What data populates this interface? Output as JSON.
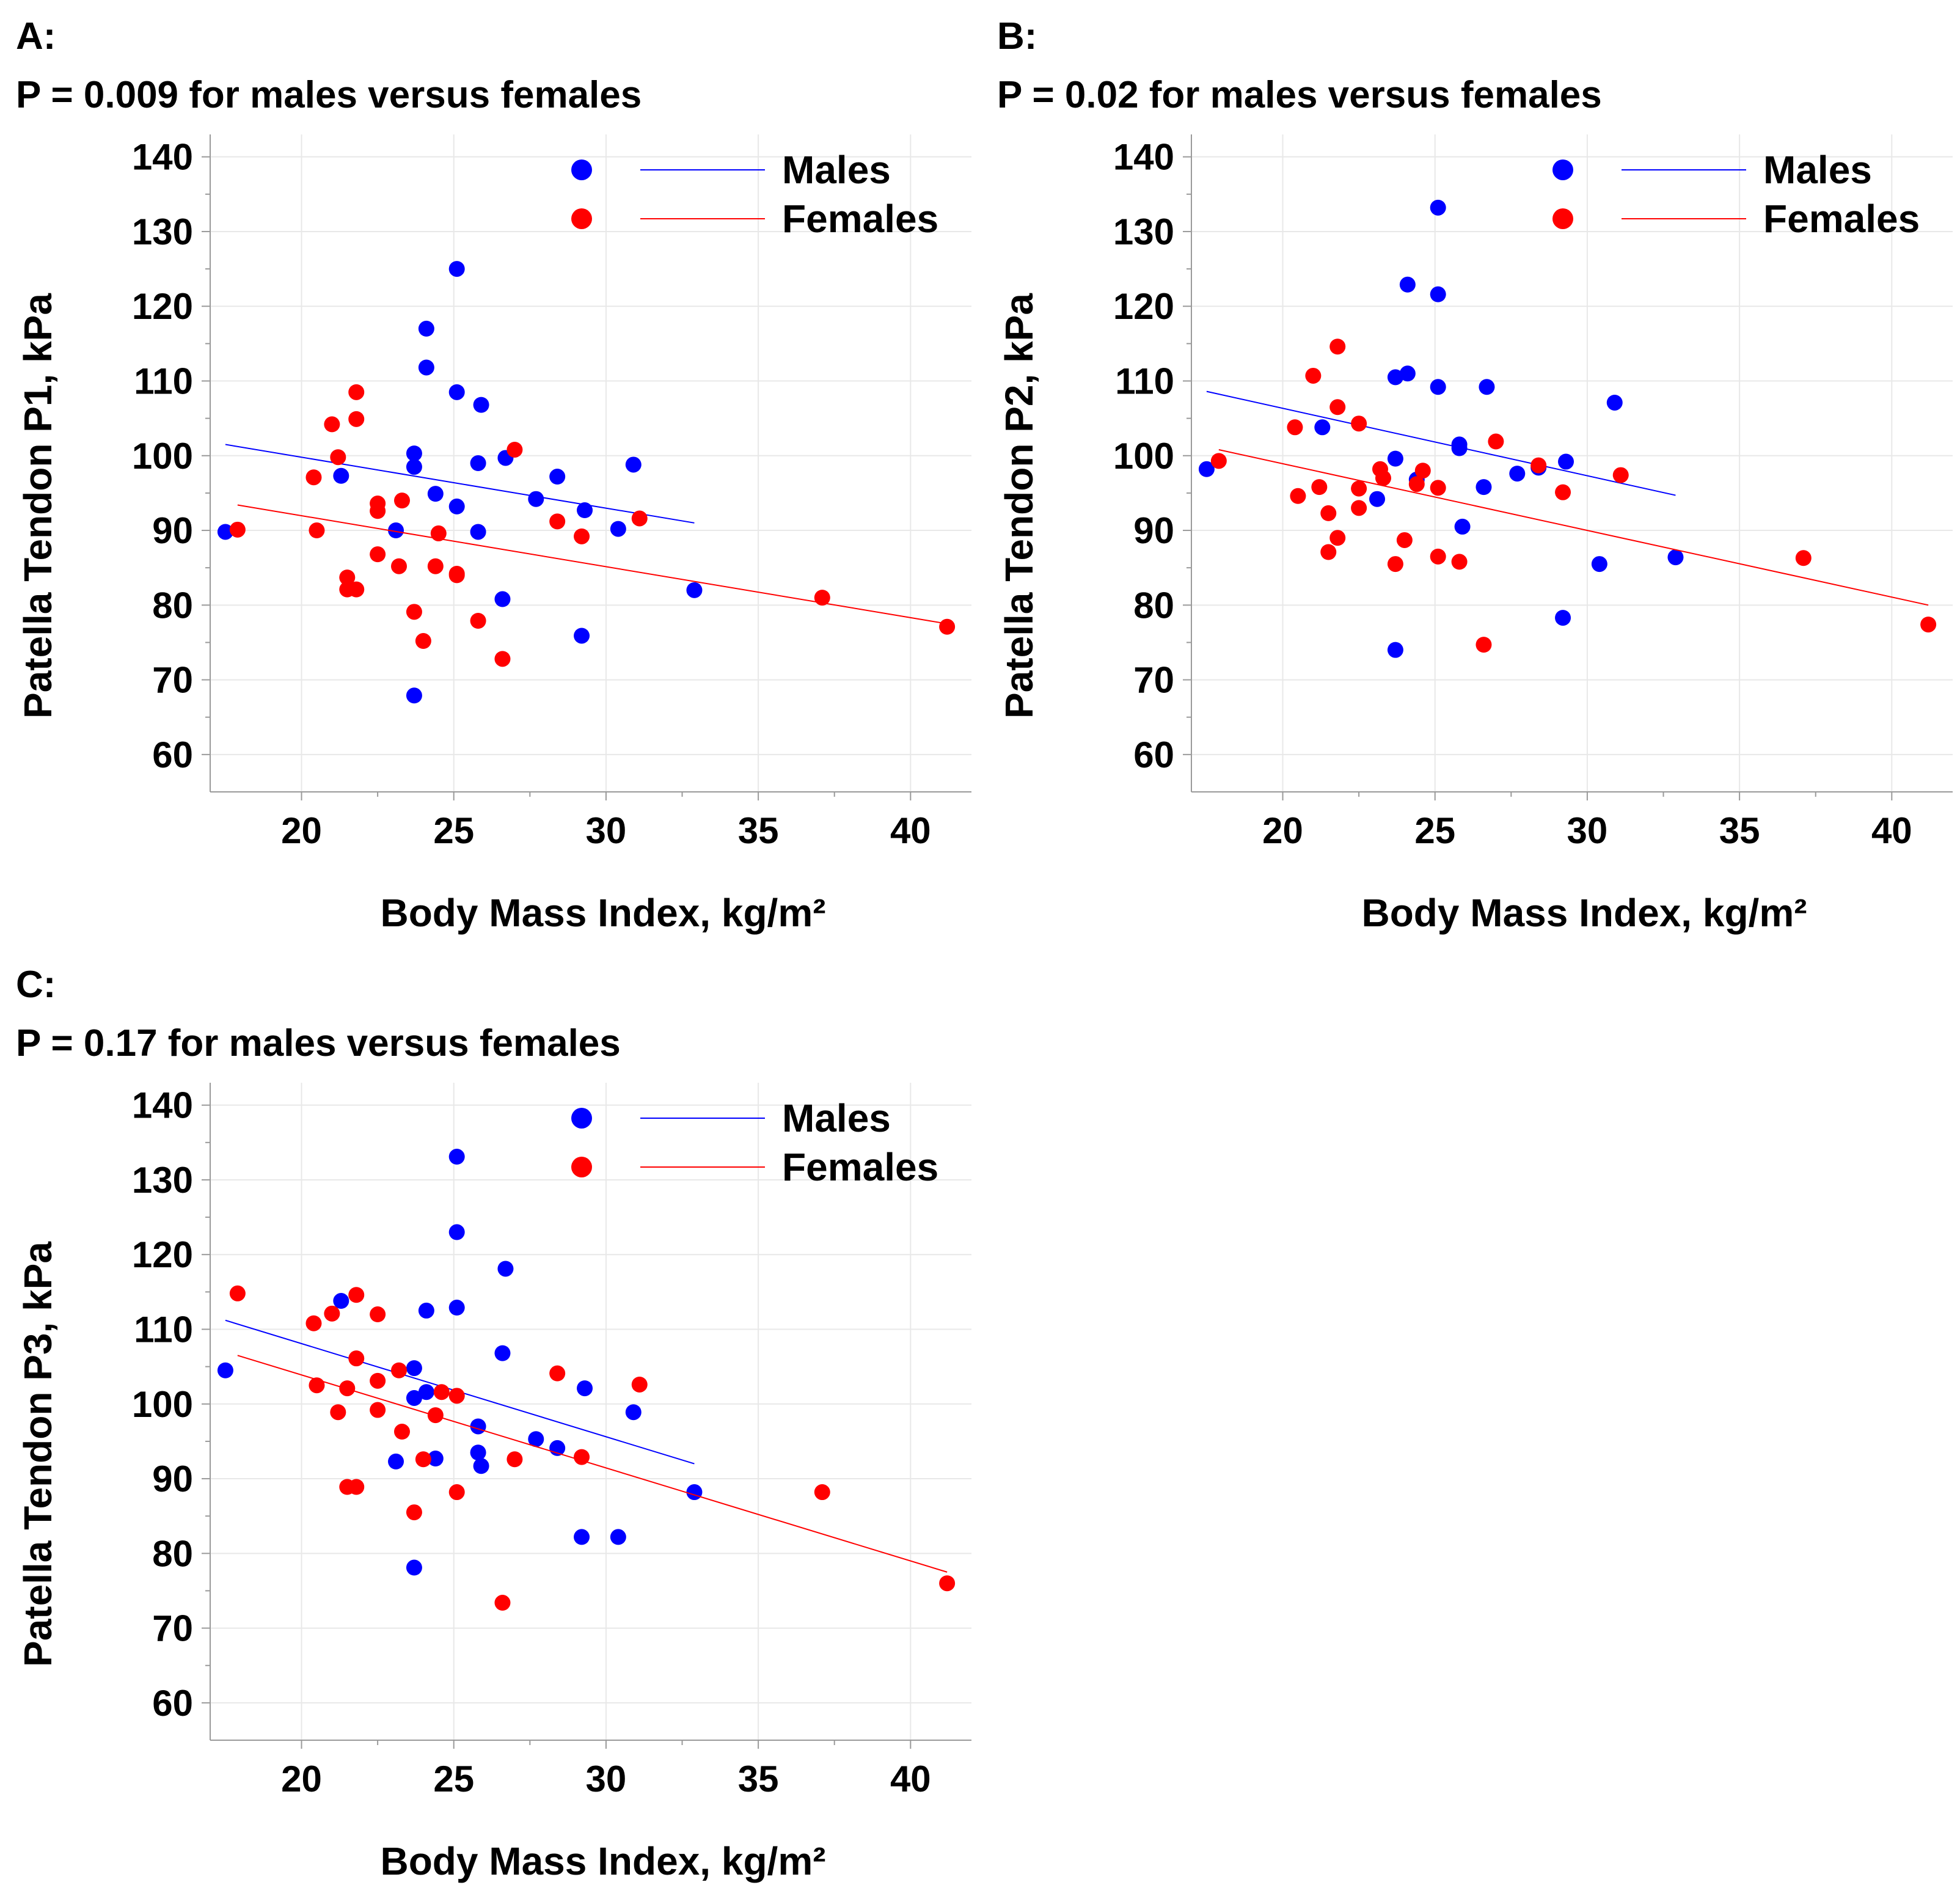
{
  "chart_data": [
    {
      "type": "scatter",
      "panel_label": "A:",
      "title": "P = 0.009 for males versus females",
      "xlabel": "Body Mass Index, kg/m²",
      "ylabel": "Patella Tendon P1, kPa",
      "xlim": [
        17,
        42
      ],
      "ylim": [
        55,
        143
      ],
      "xticks": [
        20,
        25,
        30,
        35,
        40
      ],
      "yticks": [
        60,
        70,
        80,
        90,
        100,
        110,
        120,
        130,
        140
      ],
      "grid": true,
      "legend_position": "top-right",
      "series": [
        {
          "name": "Males",
          "color": "#0000ff",
          "points": [
            [
              17.5,
              89.8
            ],
            [
              21.3,
              97.3
            ],
            [
              23.1,
              90
            ],
            [
              23.7,
              100.3
            ],
            [
              23.7,
              98.5
            ],
            [
              23.7,
              67.9
            ],
            [
              24.1,
              117
            ],
            [
              24.1,
              111.8
            ],
            [
              24.4,
              94.9
            ],
            [
              25.1,
              125
            ],
            [
              25.1,
              108.5
            ],
            [
              25.1,
              93.2
            ],
            [
              25.8,
              99
            ],
            [
              25.8,
              89.8
            ],
            [
              25.9,
              106.8
            ],
            [
              26.6,
              80.8
            ],
            [
              26.7,
              99.7
            ],
            [
              27.7,
              94.2
            ],
            [
              28.4,
              97.2
            ],
            [
              29.2,
              75.9
            ],
            [
              29.3,
              92.7
            ],
            [
              30.4,
              90.2
            ],
            [
              30.9,
              98.8
            ],
            [
              32.9,
              82
            ]
          ],
          "fit": [
            [
              17.5,
              101.5
            ],
            [
              32.9,
              91
            ]
          ]
        },
        {
          "name": "Females",
          "color": "#ff0000",
          "points": [
            [
              17.9,
              90.1
            ],
            [
              20.4,
              97.1
            ],
            [
              20.5,
              90
            ],
            [
              21,
              104.2
            ],
            [
              21.2,
              99.8
            ],
            [
              21.5,
              83.7
            ],
            [
              21.5,
              82.1
            ],
            [
              21.8,
              82.1
            ],
            [
              21.8,
              108.5
            ],
            [
              21.8,
              104.9
            ],
            [
              22.5,
              93.6
            ],
            [
              22.5,
              92.6
            ],
            [
              22.5,
              86.8
            ],
            [
              23.2,
              85.2
            ],
            [
              23.3,
              94
            ],
            [
              23.7,
              79.1
            ],
            [
              24,
              75.2
            ],
            [
              24.4,
              85.2
            ],
            [
              24.5,
              89.6
            ],
            [
              25.1,
              84.2
            ],
            [
              25.1,
              84
            ],
            [
              25.8,
              77.9
            ],
            [
              26.6,
              72.8
            ],
            [
              27,
              100.8
            ],
            [
              28.4,
              91.2
            ],
            [
              29.2,
              89.2
            ],
            [
              31.1,
              91.6
            ],
            [
              37.1,
              81
            ],
            [
              41.2,
              77.1
            ]
          ],
          "fit": [
            [
              17.9,
              93.4
            ],
            [
              41.2,
              77.5
            ]
          ]
        }
      ]
    },
    {
      "type": "scatter",
      "panel_label": "B:",
      "title": "P = 0.02 for males versus females",
      "xlabel": "Body Mass Index, kg/m²",
      "ylabel": "Patella Tendon P2, kPa",
      "xlim": [
        17,
        42
      ],
      "ylim": [
        55,
        143
      ],
      "xticks": [
        20,
        25,
        30,
        35,
        40
      ],
      "yticks": [
        60,
        70,
        80,
        90,
        100,
        110,
        120,
        130,
        140
      ],
      "grid": true,
      "legend_position": "top-right",
      "series": [
        {
          "name": "Males",
          "color": "#0000ff",
          "points": [
            [
              17.5,
              98.2
            ],
            [
              21.3,
              103.8
            ],
            [
              23.1,
              94.2
            ],
            [
              23.7,
              110.5
            ],
            [
              23.7,
              99.6
            ],
            [
              23.7,
              74
            ],
            [
              24.1,
              122.9
            ],
            [
              24.1,
              111
            ],
            [
              24.4,
              96.8
            ],
            [
              25.1,
              133.2
            ],
            [
              25.1,
              121.6
            ],
            [
              25.1,
              109.2
            ],
            [
              25.8,
              101.5
            ],
            [
              25.8,
              101
            ],
            [
              25.9,
              90.5
            ],
            [
              26.6,
              95.8
            ],
            [
              26.7,
              109.2
            ],
            [
              27.7,
              97.6
            ],
            [
              28.4,
              98.4
            ],
            [
              29.2,
              78.3
            ],
            [
              29.3,
              99.2
            ],
            [
              30.4,
              85.5
            ],
            [
              30.9,
              107.1
            ],
            [
              32.9,
              86.4
            ]
          ],
          "fit": [
            [
              17.5,
              108.6
            ],
            [
              32.9,
              94.7
            ]
          ]
        },
        {
          "name": "Females",
          "color": "#ff0000",
          "points": [
            [
              17.9,
              99.3
            ],
            [
              20.4,
              103.8
            ],
            [
              20.5,
              94.6
            ],
            [
              21,
              110.7
            ],
            [
              21.2,
              95.8
            ],
            [
              21.5,
              92.3
            ],
            [
              21.5,
              87.1
            ],
            [
              21.8,
              106.5
            ],
            [
              21.8,
              114.6
            ],
            [
              21.8,
              89
            ],
            [
              22.5,
              104.3
            ],
            [
              22.5,
              95.6
            ],
            [
              22.5,
              93
            ],
            [
              23.2,
              98.2
            ],
            [
              23.3,
              97
            ],
            [
              23.7,
              85.5
            ],
            [
              24,
              88.7
            ],
            [
              24.4,
              96.2
            ],
            [
              24.6,
              98
            ],
            [
              25.1,
              95.7
            ],
            [
              25.1,
              86.5
            ],
            [
              25.8,
              85.8
            ],
            [
              26.6,
              74.7
            ],
            [
              27,
              101.9
            ],
            [
              28.4,
              98.7
            ],
            [
              29.2,
              95.1
            ],
            [
              31.1,
              97.4
            ],
            [
              37.1,
              86.3
            ],
            [
              41.2,
              77.4
            ]
          ],
          "fit": [
            [
              17.9,
              100.8
            ],
            [
              41.2,
              80
            ]
          ]
        }
      ]
    },
    {
      "type": "scatter",
      "panel_label": "C:",
      "title": "P = 0.17 for males versus females",
      "xlabel": "Body Mass Index, kg/m²",
      "ylabel": "Patella Tendon P3, kPa",
      "xlim": [
        17,
        42
      ],
      "ylim": [
        55,
        143
      ],
      "xticks": [
        20,
        25,
        30,
        35,
        40
      ],
      "yticks": [
        60,
        70,
        80,
        90,
        100,
        110,
        120,
        130,
        140
      ],
      "grid": true,
      "legend_position": "top-right",
      "series": [
        {
          "name": "Males",
          "color": "#0000ff",
          "points": [
            [
              17.5,
              104.5
            ],
            [
              21.3,
              113.8
            ],
            [
              23.1,
              92.3
            ],
            [
              23.7,
              104.8
            ],
            [
              23.7,
              100.8
            ],
            [
              23.7,
              78.1
            ],
            [
              24.1,
              112.5
            ],
            [
              24.1,
              101.6
            ],
            [
              24.4,
              92.7
            ],
            [
              25.1,
              133.1
            ],
            [
              25.1,
              123
            ],
            [
              25.1,
              112.9
            ],
            [
              25.8,
              97
            ],
            [
              25.8,
              93.5
            ],
            [
              25.9,
              91.7
            ],
            [
              26.6,
              106.8
            ],
            [
              26.7,
              118.1
            ],
            [
              27.7,
              95.3
            ],
            [
              28.4,
              94.1
            ],
            [
              29.2,
              82.2
            ],
            [
              29.3,
              102.1
            ],
            [
              30.4,
              82.2
            ],
            [
              30.9,
              98.9
            ],
            [
              32.9,
              88.2
            ]
          ],
          "fit": [
            [
              17.5,
              111.2
            ],
            [
              32.9,
              92
            ]
          ]
        },
        {
          "name": "Females",
          "color": "#ff0000",
          "points": [
            [
              17.9,
              114.8
            ],
            [
              20.4,
              110.8
            ],
            [
              20.5,
              102.5
            ],
            [
              21,
              112.1
            ],
            [
              21.2,
              98.9
            ],
            [
              21.5,
              88.9
            ],
            [
              21.5,
              102.1
            ],
            [
              21.8,
              114.6
            ],
            [
              21.8,
              106.1
            ],
            [
              21.8,
              88.9
            ],
            [
              22.5,
              112
            ],
            [
              22.5,
              103.1
            ],
            [
              22.5,
              99.2
            ],
            [
              23.2,
              104.5
            ],
            [
              23.3,
              96.3
            ],
            [
              23.7,
              85.5
            ],
            [
              24,
              92.6
            ],
            [
              24.4,
              98.5
            ],
            [
              24.6,
              101.6
            ],
            [
              25.1,
              101.1
            ],
            [
              25.1,
              88.2
            ],
            [
              26.6,
              73.4
            ],
            [
              27,
              92.6
            ],
            [
              28.4,
              104.1
            ],
            [
              29.2,
              92.9
            ],
            [
              31.1,
              102.6
            ],
            [
              37.1,
              88.2
            ],
            [
              41.2,
              76
            ]
          ],
          "fit": [
            [
              17.9,
              106.5
            ],
            [
              41.2,
              77.5
            ]
          ]
        }
      ]
    }
  ]
}
